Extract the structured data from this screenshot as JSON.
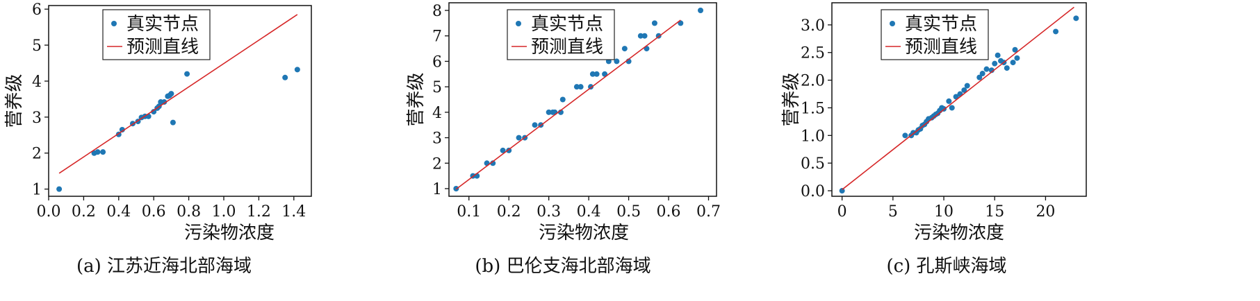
{
  "colors": {
    "points": "#1f77b4",
    "line": "#d62728",
    "axis": "#111111"
  },
  "chart_data": [
    {
      "type": "scatter",
      "caption": "(a) 江苏近海北部海域",
      "xlabel": "污染物浓度",
      "ylabel": "营养级",
      "xlim": [
        0.0,
        1.5
      ],
      "ylim": [
        0.8,
        6.1
      ],
      "xticks": [
        0.0,
        0.2,
        0.4,
        0.6,
        0.8,
        1.0,
        1.2,
        1.4
      ],
      "xtick_labels": [
        "0.0",
        "0.2",
        "0.4",
        "0.6",
        "0.8",
        "1.0",
        "1.2",
        "1.4"
      ],
      "yticks": [
        1,
        2,
        3,
        4,
        5,
        6
      ],
      "ytick_labels": [
        "1",
        "2",
        "3",
        "4",
        "5",
        "6"
      ],
      "legend": {
        "position": "upper-left",
        "scatter_label": "真实节点",
        "line_label": "预测直线"
      },
      "series": [
        {
          "name": "真实节点",
          "kind": "scatter",
          "x": [
            0.06,
            0.26,
            0.28,
            0.31,
            0.4,
            0.42,
            0.48,
            0.51,
            0.53,
            0.55,
            0.57,
            0.6,
            0.62,
            0.63,
            0.64,
            0.66,
            0.68,
            0.69,
            0.7,
            0.71,
            0.79,
            1.35,
            1.42
          ],
          "y": [
            1.0,
            2.0,
            2.03,
            2.03,
            2.52,
            2.65,
            2.82,
            2.88,
            2.99,
            3.02,
            3.02,
            3.15,
            3.25,
            3.3,
            3.42,
            3.42,
            3.58,
            3.6,
            3.65,
            2.85,
            4.2,
            4.1,
            4.32
          ]
        },
        {
          "name": "预测直线",
          "kind": "line",
          "x": [
            0.06,
            1.42
          ],
          "y": [
            1.44,
            5.85
          ]
        }
      ]
    },
    {
      "type": "scatter",
      "caption": "(b) 巴伦支海北部海域",
      "xlabel": "污染物浓度",
      "ylabel": "营养级",
      "xlim": [
        0.05,
        0.72
      ],
      "ylim": [
        0.7,
        8.3
      ],
      "xticks": [
        0.1,
        0.2,
        0.3,
        0.4,
        0.5,
        0.6,
        0.7
      ],
      "xtick_labels": [
        "0.1",
        "0.2",
        "0.3",
        "0.4",
        "0.5",
        "0.6",
        "0.7"
      ],
      "yticks": [
        1,
        2,
        3,
        4,
        5,
        6,
        7,
        8
      ],
      "ytick_labels": [
        "1",
        "2",
        "3",
        "4",
        "5",
        "6",
        "7",
        "8"
      ],
      "legend": {
        "position": "upper-center",
        "scatter_label": "真实节点",
        "line_label": "预测直线"
      },
      "series": [
        {
          "name": "真实节点",
          "kind": "scatter",
          "x": [
            0.068,
            0.11,
            0.12,
            0.145,
            0.16,
            0.185,
            0.2,
            0.225,
            0.24,
            0.265,
            0.28,
            0.3,
            0.31,
            0.315,
            0.33,
            0.335,
            0.37,
            0.38,
            0.405,
            0.41,
            0.42,
            0.44,
            0.45,
            0.47,
            0.49,
            0.5,
            0.53,
            0.54,
            0.545,
            0.565,
            0.575,
            0.63,
            0.68
          ],
          "y": [
            1.0,
            1.5,
            1.5,
            2.0,
            2.0,
            2.5,
            2.5,
            3.0,
            3.0,
            3.5,
            3.5,
            4.0,
            4.0,
            4.0,
            4.0,
            4.5,
            5.0,
            5.0,
            5.0,
            5.5,
            5.5,
            5.5,
            6.0,
            6.0,
            6.5,
            6.0,
            7.0,
            7.0,
            6.5,
            7.5,
            7.0,
            7.5,
            8.0
          ]
        },
        {
          "name": "预测直线",
          "kind": "line",
          "x": [
            0.068,
            0.63
          ],
          "y": [
            0.98,
            7.62
          ]
        }
      ]
    },
    {
      "type": "scatter",
      "caption": "(c) 孔斯峡海域",
      "xlabel": "污染物浓度",
      "ylabel": "营养级",
      "xlim": [
        -1.0,
        24.0
      ],
      "ylim": [
        -0.1,
        3.4
      ],
      "xticks": [
        0,
        5,
        10,
        15,
        20
      ],
      "xtick_labels": [
        "0",
        "5",
        "10",
        "15",
        "20"
      ],
      "yticks": [
        0.0,
        0.5,
        1.0,
        1.5,
        2.0,
        2.5,
        3.0
      ],
      "ytick_labels": [
        "0.0",
        "0.5",
        "1.0",
        "1.5",
        "2.0",
        "2.5",
        "3.0"
      ],
      "legend": {
        "position": "upper-left",
        "scatter_label": "真实节点",
        "line_label": "预测直线"
      },
      "series": [
        {
          "name": "真实节点",
          "kind": "scatter",
          "x": [
            0,
            6.2,
            6.8,
            7.0,
            7.3,
            7.5,
            7.7,
            7.9,
            8.1,
            8.3,
            8.5,
            8.8,
            9.0,
            9.2,
            9.4,
            9.6,
            9.8,
            10.0,
            10.5,
            10.8,
            11.2,
            11.6,
            12.0,
            12.3,
            13.5,
            13.8,
            14.2,
            14.7,
            15.0,
            15.3,
            15.6,
            15.9,
            16.2,
            16.8,
            17.0,
            17.2,
            21.0,
            23.0
          ],
          "y": [
            0.0,
            1.0,
            1.0,
            1.05,
            1.05,
            1.1,
            1.12,
            1.18,
            1.2,
            1.25,
            1.3,
            1.32,
            1.35,
            1.38,
            1.4,
            1.45,
            1.5,
            1.48,
            1.62,
            1.5,
            1.7,
            1.75,
            1.82,
            1.9,
            2.05,
            2.12,
            2.2,
            2.18,
            2.3,
            2.45,
            2.35,
            2.32,
            2.22,
            2.32,
            2.55,
            2.4,
            2.88,
            3.12
          ]
        },
        {
          "name": "预测直线",
          "kind": "line",
          "x": [
            0,
            22.8
          ],
          "y": [
            0.02,
            3.32
          ]
        }
      ]
    }
  ]
}
